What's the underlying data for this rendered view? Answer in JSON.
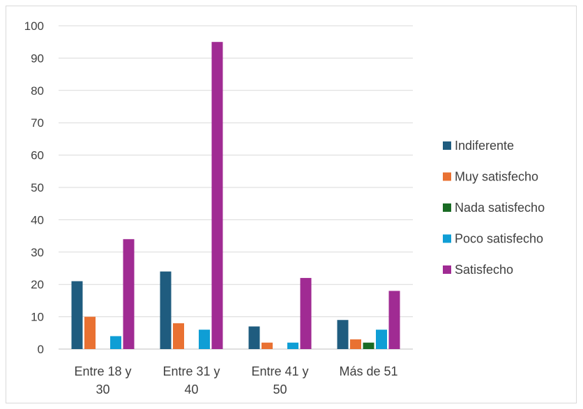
{
  "chart_data": {
    "type": "bar",
    "title": "",
    "xlabel": "",
    "ylabel": "",
    "ylim": [
      0,
      100
    ],
    "yticks": [
      0,
      10,
      20,
      30,
      40,
      50,
      60,
      70,
      80,
      90,
      100
    ],
    "grid": true,
    "legend_position": "right",
    "categories": [
      [
        "Entre 18 y",
        "30"
      ],
      [
        "Entre 31 y",
        "40"
      ],
      [
        "Entre 41 y",
        "50"
      ],
      [
        "Más de 51"
      ]
    ],
    "series": [
      {
        "name": "Indiferente",
        "color": "#1f5c7f",
        "values": [
          21,
          24,
          7,
          9
        ]
      },
      {
        "name": "Muy satisfecho",
        "color": "#e97132",
        "values": [
          10,
          8,
          2,
          3
        ]
      },
      {
        "name": "Nada satisfecho",
        "color": "#196b24",
        "values": [
          0,
          0,
          0,
          2
        ]
      },
      {
        "name": "Poco satisfecho",
        "color": "#0f9ed5",
        "values": [
          4,
          6,
          2,
          6
        ]
      },
      {
        "name": "Satisfecho",
        "color": "#a02b93",
        "values": [
          34,
          95,
          22,
          18
        ]
      }
    ]
  }
}
